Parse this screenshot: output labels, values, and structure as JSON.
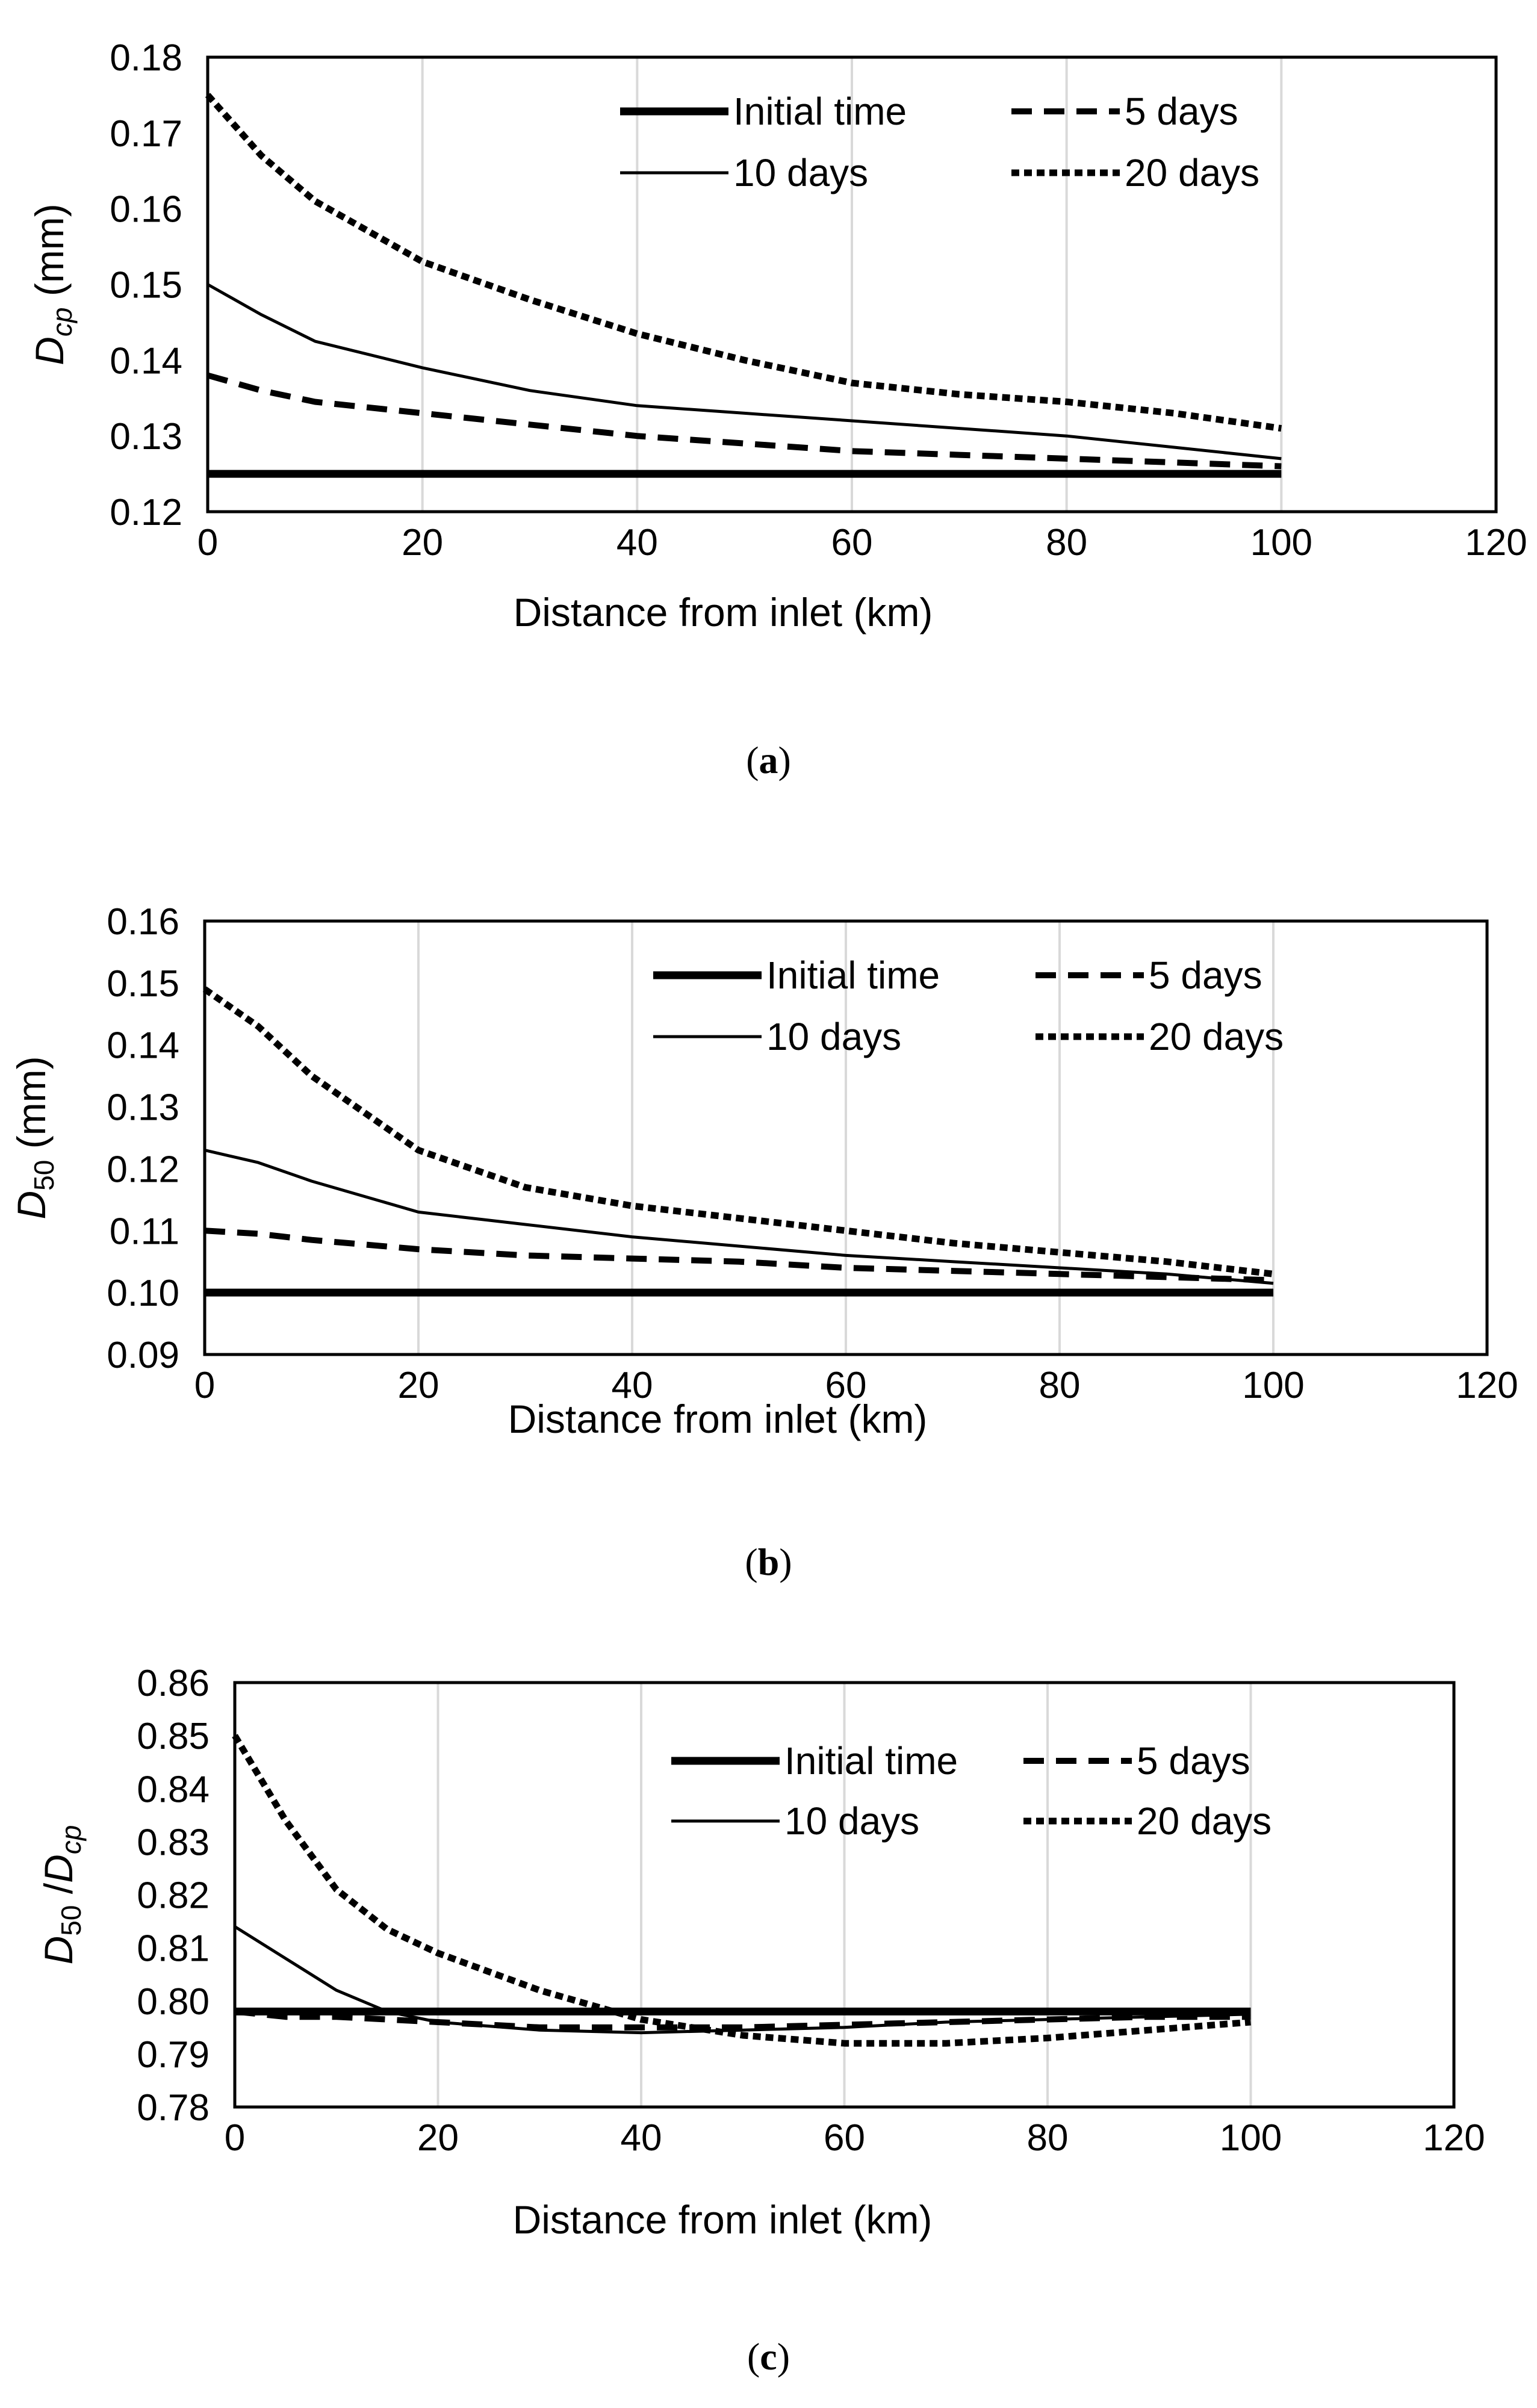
{
  "chart_data": [
    {
      "type": "line",
      "panel_label": "a",
      "xlabel": "Distance from inlet (km)",
      "ylabel": {
        "main": "D",
        "sub": "cp",
        "units": " (mm)"
      },
      "xlim": [
        0,
        120
      ],
      "ylim": [
        0.12,
        0.18
      ],
      "xticks": [
        "0",
        "20",
        "40",
        "60",
        "80",
        "100",
        "120"
      ],
      "yticks": [
        "0.12",
        "0.13",
        "0.14",
        "0.15",
        "0.16",
        "0.17",
        "0.18"
      ],
      "grid": "vertical",
      "legend_position": "top-right",
      "x": [
        0,
        5,
        10,
        20,
        30,
        40,
        50,
        60,
        70,
        80,
        90,
        100
      ],
      "series": [
        {
          "name": "Initial time",
          "style": "thick-solid",
          "values": [
            0.125,
            0.125,
            0.125,
            0.125,
            0.125,
            0.125,
            0.125,
            0.125,
            0.125,
            0.125,
            0.125,
            0.125
          ]
        },
        {
          "name": "5 days",
          "style": "long-dash",
          "values": [
            0.138,
            0.136,
            0.1345,
            0.133,
            0.1315,
            0.13,
            0.129,
            0.128,
            0.1275,
            0.127,
            0.1265,
            0.126
          ]
        },
        {
          "name": "10 days",
          "style": "thin-solid",
          "values": [
            0.15,
            0.146,
            0.1425,
            0.139,
            0.136,
            0.134,
            0.133,
            0.132,
            0.131,
            0.13,
            0.1285,
            0.127
          ]
        },
        {
          "name": "20 days",
          "style": "short-dash",
          "values": [
            0.175,
            0.167,
            0.161,
            0.153,
            0.148,
            0.1435,
            0.14,
            0.137,
            0.1355,
            0.1345,
            0.133,
            0.131
          ]
        }
      ]
    },
    {
      "type": "line",
      "panel_label": "b",
      "xlabel": "Distance from inlet (km)",
      "ylabel": {
        "main": "D",
        "sub": "50",
        "units": " (mm)"
      },
      "xlim": [
        0,
        120
      ],
      "ylim": [
        0.09,
        0.16
      ],
      "xticks": [
        "0",
        "20",
        "40",
        "60",
        "80",
        "100",
        "120"
      ],
      "yticks": [
        "0.09",
        "0.10",
        "0.11",
        "0.12",
        "0.13",
        "0.14",
        "0.15",
        "0.16"
      ],
      "grid": "vertical",
      "legend_position": "top-right",
      "x": [
        0,
        5,
        10,
        20,
        30,
        40,
        50,
        60,
        70,
        80,
        90,
        100
      ],
      "series": [
        {
          "name": "Initial time",
          "style": "thick-solid",
          "values": [
            0.1,
            0.1,
            0.1,
            0.1,
            0.1,
            0.1,
            0.1,
            0.1,
            0.1,
            0.1,
            0.1,
            0.1
          ]
        },
        {
          "name": "5 days",
          "style": "long-dash",
          "values": [
            0.11,
            0.1095,
            0.1085,
            0.107,
            0.106,
            0.1055,
            0.105,
            0.104,
            0.1035,
            0.103,
            0.1025,
            0.102
          ]
        },
        {
          "name": "10 days",
          "style": "thin-solid",
          "values": [
            0.123,
            0.121,
            0.118,
            0.113,
            0.111,
            0.109,
            0.1075,
            0.106,
            0.105,
            0.104,
            0.103,
            0.1015
          ]
        },
        {
          "name": "20 days",
          "style": "short-dash",
          "values": [
            0.149,
            0.143,
            0.135,
            0.123,
            0.117,
            0.114,
            0.112,
            0.11,
            0.108,
            0.1065,
            0.105,
            0.103
          ]
        }
      ]
    },
    {
      "type": "line",
      "panel_label": "c",
      "xlabel": "Distance from inlet (km)",
      "ylabel": {
        "main": "D",
        "sub": "50",
        "mid": " /",
        "main2": "D",
        "sub2": "cp",
        "units": ""
      },
      "xlim": [
        0,
        120
      ],
      "ylim": [
        0.78,
        0.86
      ],
      "xticks": [
        "0",
        "20",
        "40",
        "60",
        "80",
        "100",
        "120"
      ],
      "yticks": [
        "0.78",
        "0.79",
        "0.80",
        "0.81",
        "0.82",
        "0.83",
        "0.84",
        "0.85",
        "0.86"
      ],
      "grid": "vertical",
      "legend_position": "top-right",
      "x": [
        0,
        5,
        10,
        15,
        20,
        30,
        40,
        50,
        60,
        70,
        80,
        90,
        100
      ],
      "series": [
        {
          "name": "Initial time",
          "style": "thick-solid",
          "values": [
            0.798,
            0.798,
            0.798,
            0.798,
            0.798,
            0.798,
            0.798,
            0.798,
            0.798,
            0.798,
            0.798,
            0.798,
            0.798
          ]
        },
        {
          "name": "5 days",
          "style": "long-dash",
          "values": [
            0.798,
            0.797,
            0.797,
            0.7965,
            0.796,
            0.795,
            0.795,
            0.795,
            0.7955,
            0.796,
            0.7965,
            0.797,
            0.797
          ]
        },
        {
          "name": "10 days",
          "style": "thin-solid",
          "values": [
            0.814,
            0.808,
            0.802,
            0.798,
            0.796,
            0.7945,
            0.794,
            0.7945,
            0.795,
            0.796,
            0.7965,
            0.797,
            0.7975
          ]
        },
        {
          "name": "20 days",
          "style": "short-dash",
          "values": [
            0.85,
            0.834,
            0.821,
            0.8135,
            0.809,
            0.802,
            0.7965,
            0.7935,
            0.792,
            0.792,
            0.793,
            0.7945,
            0.796
          ]
        }
      ]
    }
  ]
}
